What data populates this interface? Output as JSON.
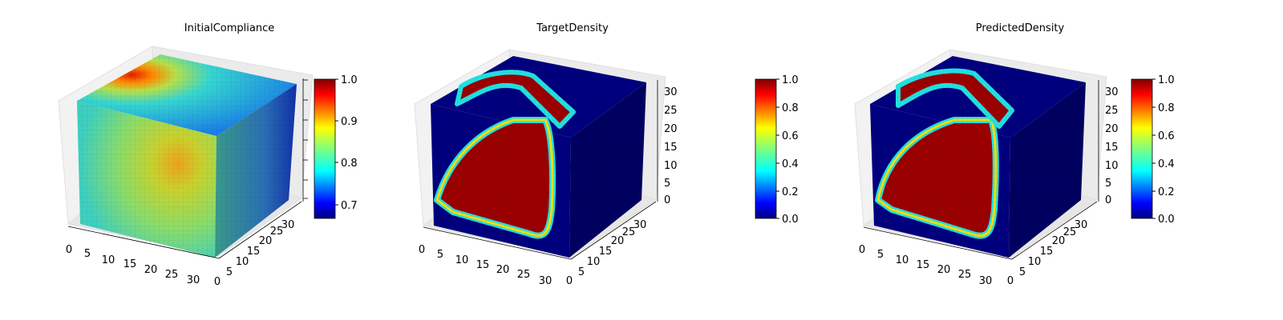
{
  "colors": {
    "jet": [
      "#00007f",
      "#0000ff",
      "#007fff",
      "#00ffff",
      "#7fff7f",
      "#ffff00",
      "#ff7f00",
      "#ff0000",
      "#7f0000"
    ],
    "pane": "#f0f0f0",
    "pane_line": "#d6d6d6",
    "voxel_edge": "#7f7f7f"
  },
  "chart_data": [
    {
      "type": "3d-voxel",
      "title": "InitialCompliance",
      "grid_size": 32,
      "x_ticks": [
        "0",
        "5",
        "10",
        "15",
        "20",
        "25",
        "30"
      ],
      "y_ticks": [
        "0",
        "5",
        "10",
        "15",
        "20",
        "25",
        "30"
      ],
      "z_ticks": [],
      "colorbar": {
        "colormap": "jet",
        "range": [
          0.665,
          1.0
        ],
        "ticks": [
          "0.7",
          "0.8",
          "0.9",
          "1.0"
        ]
      },
      "face_values": {
        "front": "mostly 0.82-0.88 (green), warm spot ~0.93 at x≈25 z≈15, cooler ~0.80 near x≈10",
        "top": "~0.80 (cyan) with hot spot ~1.0 near rear-left corner",
        "right": "~0.82 grading to ~0.70 at the back"
      }
    },
    {
      "type": "3d-voxel",
      "title": "TargetDensity",
      "grid_size": 32,
      "x_ticks": [
        "0",
        "5",
        "10",
        "15",
        "20",
        "25",
        "30"
      ],
      "y_ticks": [
        "0",
        "5",
        "10",
        "15",
        "20",
        "25",
        "30"
      ],
      "z_ticks": [
        "0",
        "5",
        "10",
        "15",
        "20",
        "25",
        "30"
      ],
      "colorbar": {
        "colormap": "jet",
        "range": [
          0.0,
          1.0
        ],
        "ticks": [
          "0.0",
          "0.2",
          "0.4",
          "0.6",
          "0.8",
          "1.0"
        ]
      },
      "face_values": {
        "front": "density 1.0 inside a curved band shape, 0.0 elsewhere",
        "top": "density 1.0 along an arched band near the front edge, 0.0 elsewhere",
        "right": "0.0"
      }
    },
    {
      "type": "3d-voxel",
      "title": "PredictedDensity",
      "grid_size": 32,
      "x_ticks": [
        "0",
        "5",
        "10",
        "15",
        "20",
        "25",
        "30"
      ],
      "y_ticks": [
        "0",
        "5",
        "10",
        "15",
        "20",
        "25",
        "30"
      ],
      "z_ticks": [
        "0",
        "5",
        "10",
        "15",
        "20",
        "25",
        "30"
      ],
      "colorbar": {
        "colormap": "jet",
        "range": [
          0.0,
          1.0
        ],
        "ticks": [
          "0.0",
          "0.2",
          "0.4",
          "0.6",
          "0.8",
          "1.0"
        ]
      },
      "face_values": {
        "front": "density 1.0 inside a curved band shape (close to target), 0.0 elsewhere",
        "top": "density 1.0 along an arched band, 0.0 elsewhere",
        "right": "0.0"
      }
    }
  ]
}
